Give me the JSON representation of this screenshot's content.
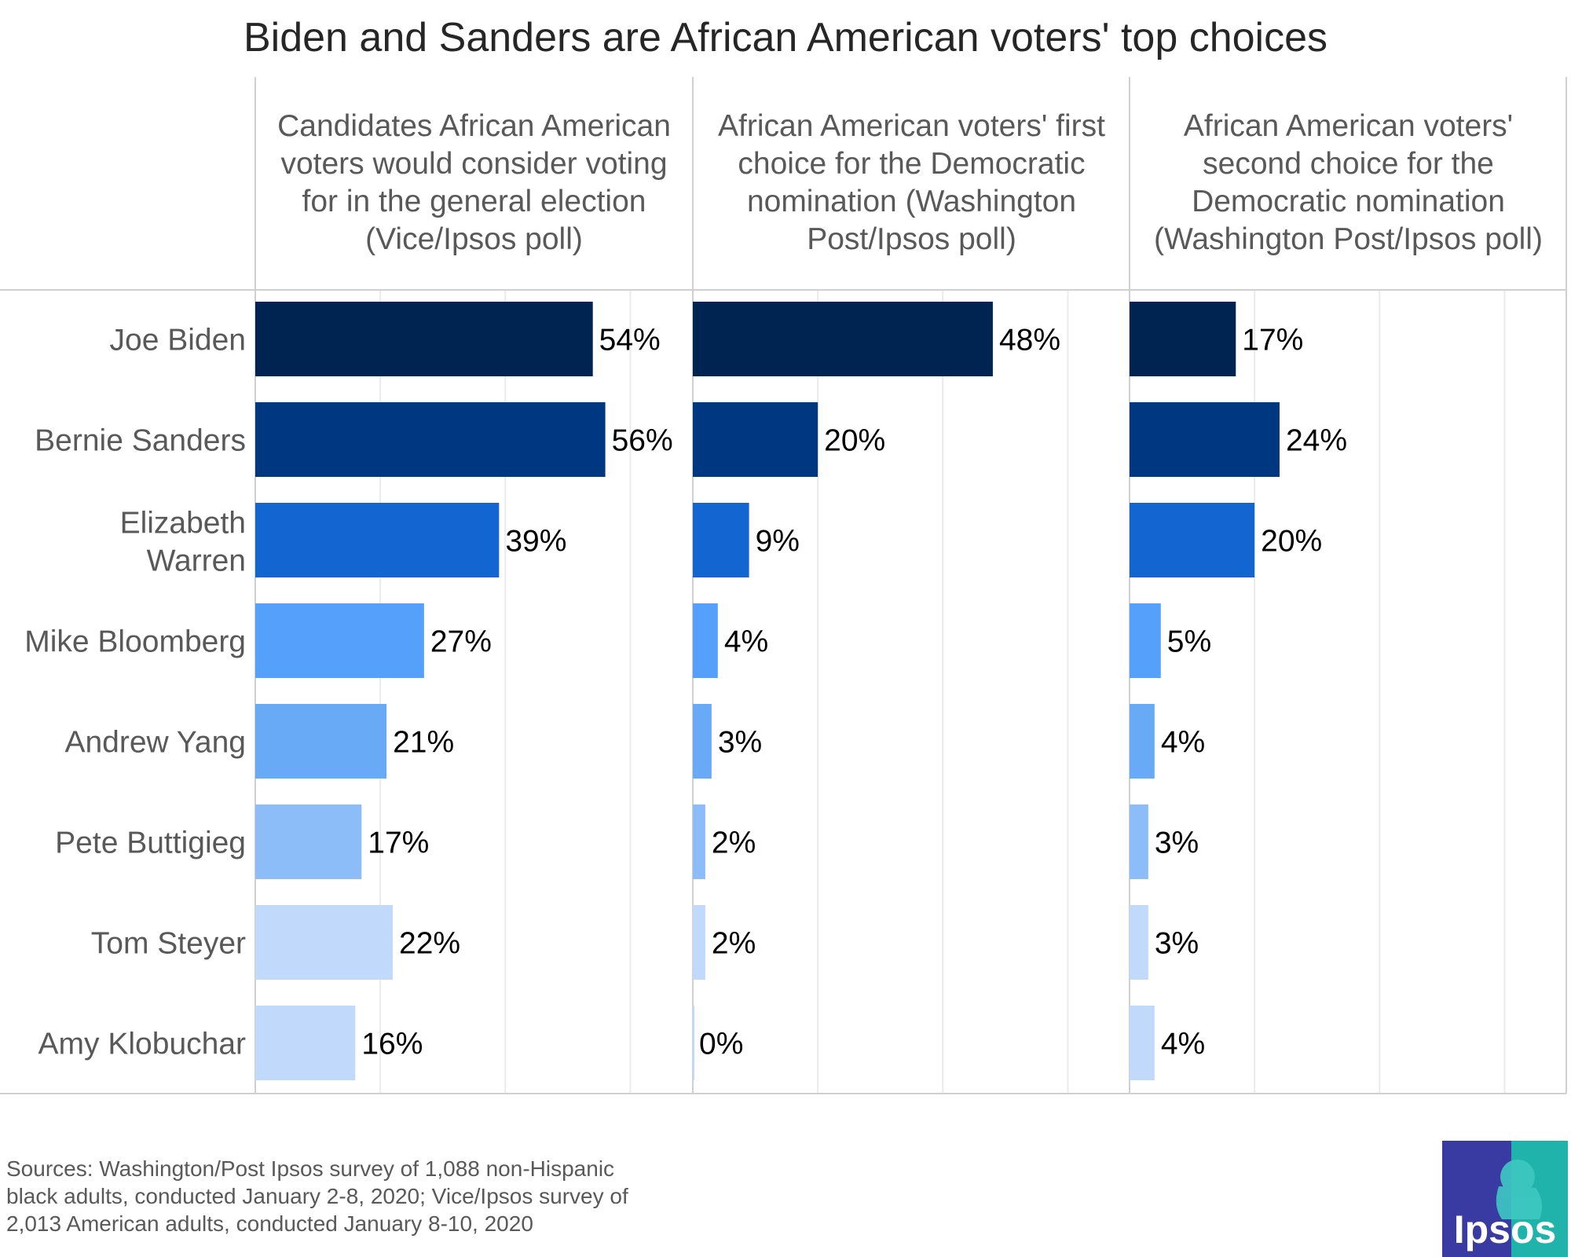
{
  "chart_data": {
    "type": "bar",
    "orientation": "horizontal",
    "title": "Biden and Sanders are African American voters' top choices",
    "categories": [
      "Joe Biden",
      "Bernie Sanders",
      "Elizabeth Warren",
      "Mike Bloomberg",
      "Andrew Yang",
      "Pete Buttigieg",
      "Tom Steyer",
      "Amy Klobuchar"
    ],
    "category_colors": [
      "#002452",
      "#003781",
      "#1365d1",
      "#55a0fa",
      "#69aaf7",
      "#8dbdf9",
      "#c1dafc",
      "#c1dafc"
    ],
    "xlim": [
      0,
      70
    ],
    "gridlines": [
      0,
      20,
      40,
      60
    ],
    "value_format": "{v}%",
    "panels": [
      {
        "title_lines": [
          "Candidates African American",
          "voters would consider voting",
          "for in the general election",
          "(Vice/Ipsos poll)"
        ],
        "values": [
          54,
          56,
          39,
          27,
          21,
          17,
          22,
          16
        ]
      },
      {
        "title_lines": [
          "African American voters' first",
          "choice for the Democratic",
          "nomination (Washington",
          "Post/Ipsos poll)"
        ],
        "values": [
          48,
          20,
          9,
          4,
          3,
          2,
          2,
          0
        ]
      },
      {
        "title_lines": [
          "African American voters'",
          "second choice for the",
          "Democratic nomination",
          "(Washington Post/Ipsos poll)"
        ],
        "values": [
          17,
          24,
          20,
          5,
          4,
          3,
          3,
          4
        ]
      }
    ],
    "source_lines": [
      "Sources: Washington/Post Ipsos survey of 1,088 non-Hispanic",
      "black adults, conducted January 2-8, 2020; Vice/Ipsos survey of",
      "2,013 American adults, conducted January 8-10, 2020"
    ]
  },
  "logo": {
    "text": "Ipsos",
    "colors": [
      "#3a3aa3",
      "#1fb3ac"
    ]
  }
}
